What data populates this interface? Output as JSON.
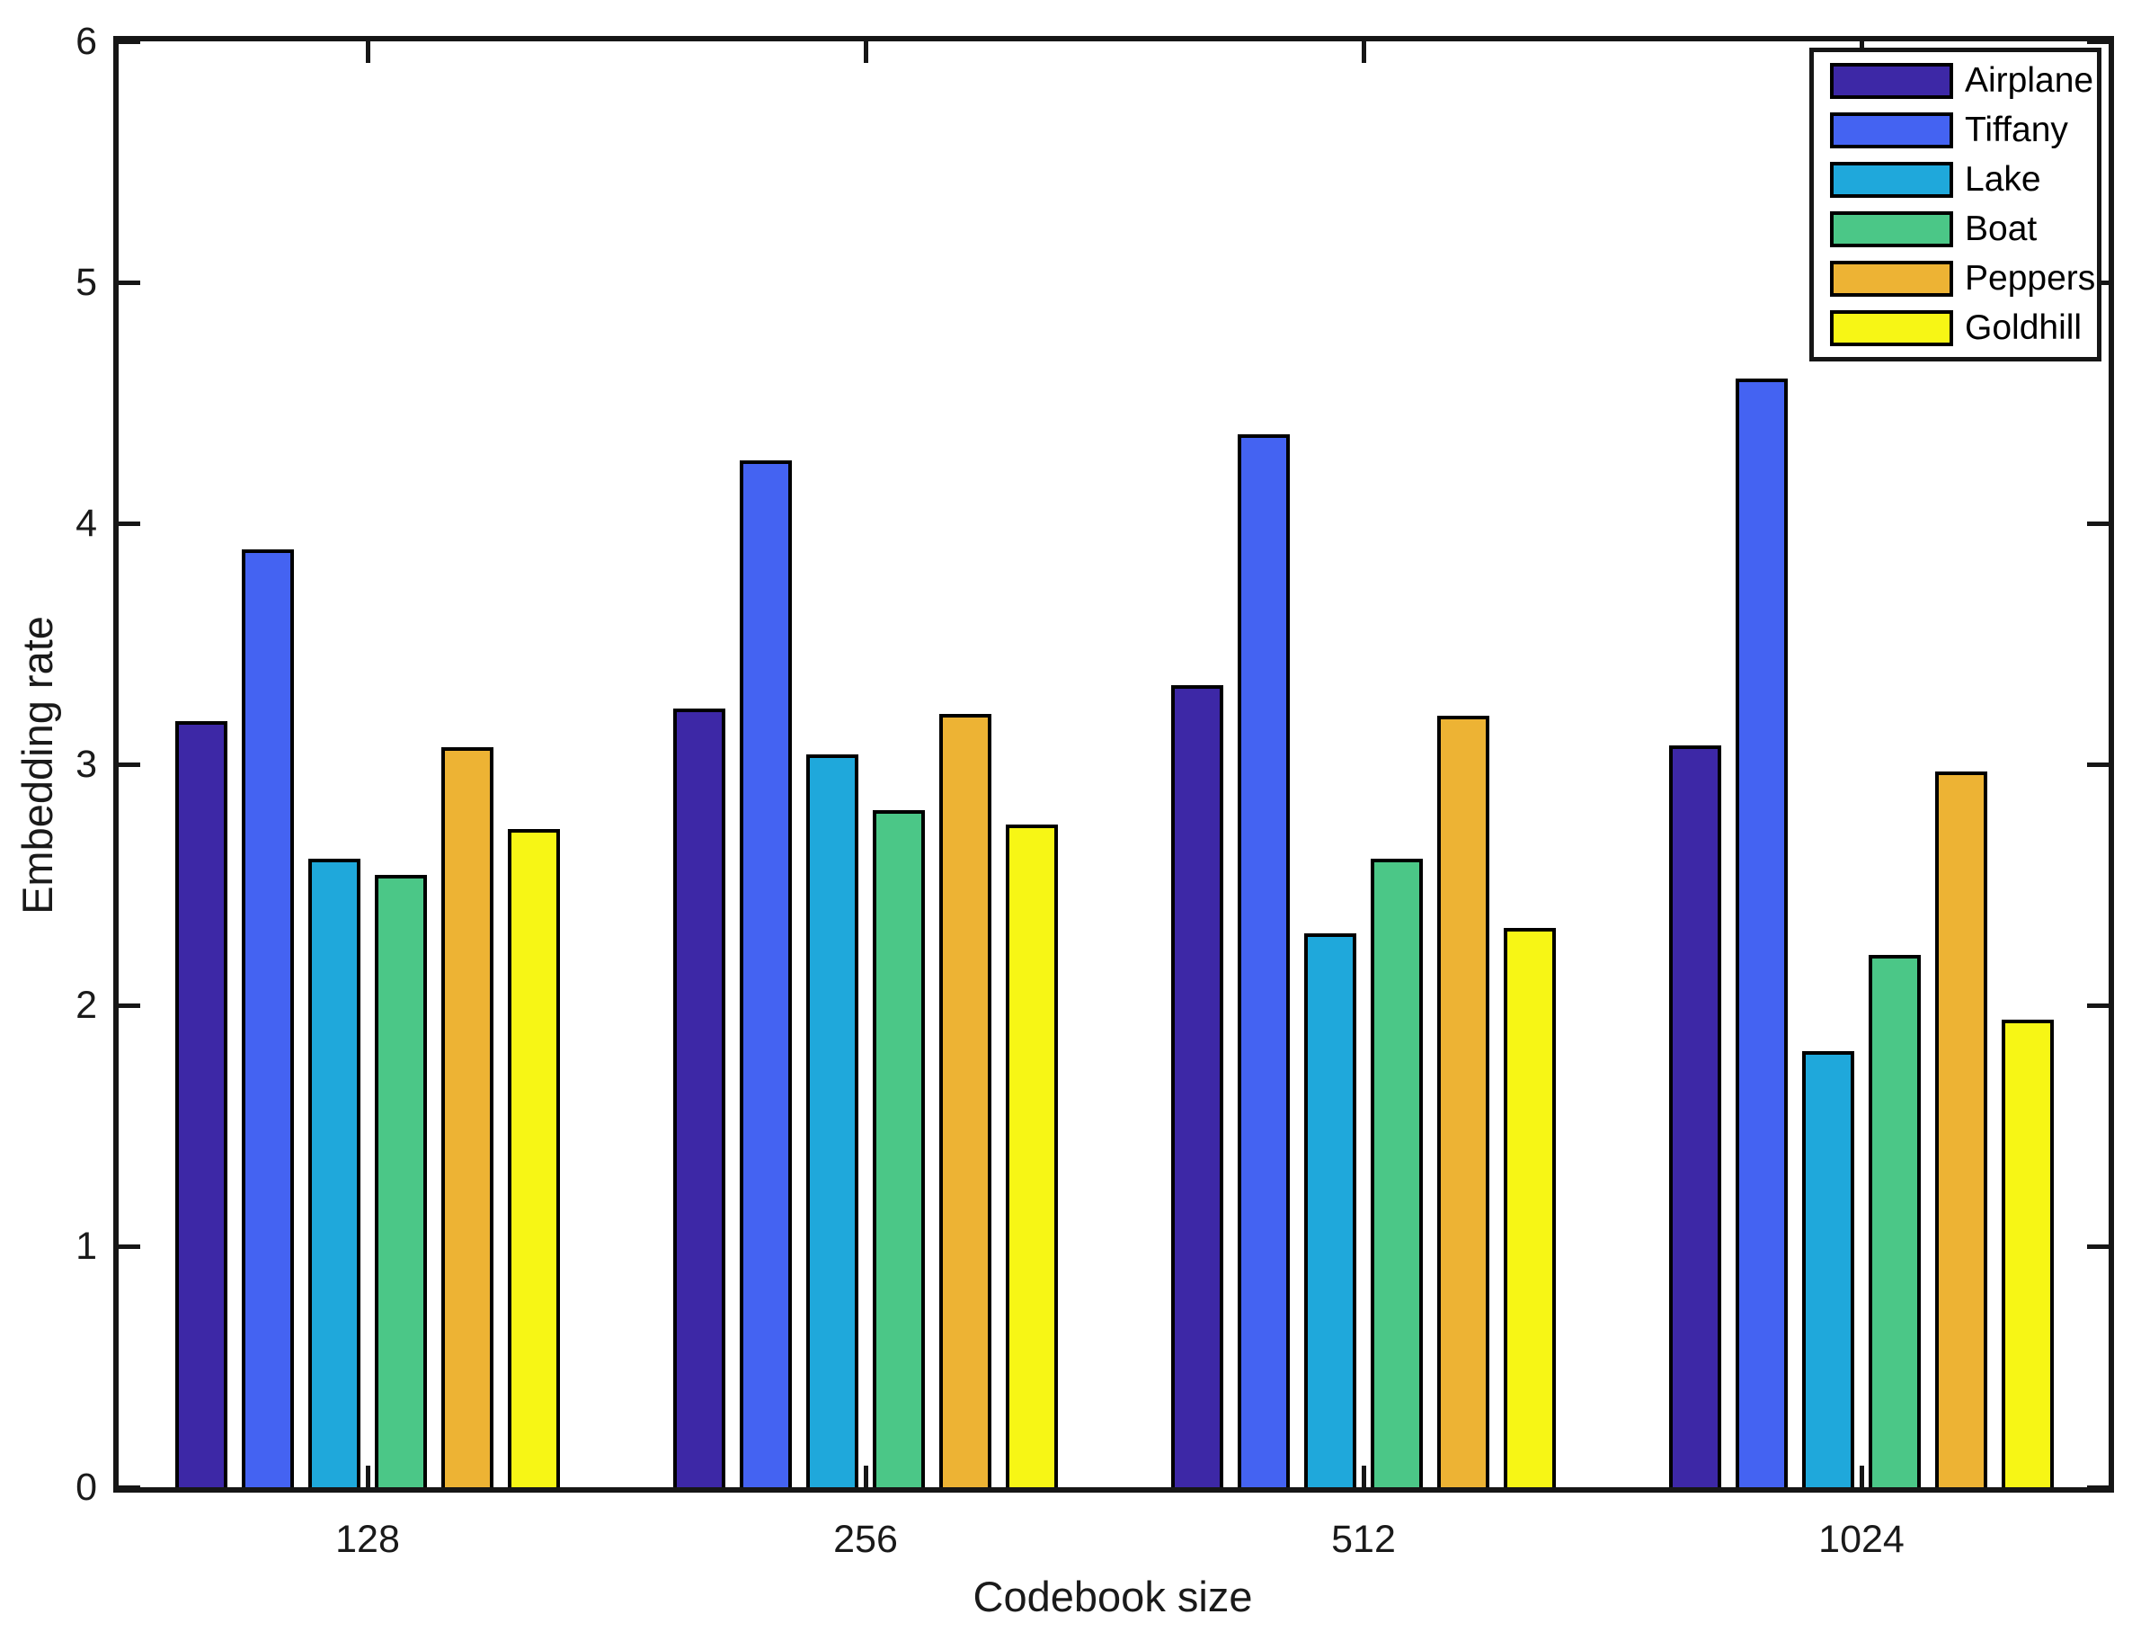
{
  "chart_data": {
    "type": "bar",
    "title": "",
    "xlabel": "Codebook size",
    "ylabel": "Embedding rate",
    "categories": [
      "128",
      "256",
      "512",
      "1024"
    ],
    "series": [
      {
        "name": "Airplane",
        "color": "#3D28A6",
        "values": [
          3.18,
          3.23,
          3.33,
          3.08
        ]
      },
      {
        "name": "Tiffany",
        "color": "#4463F2",
        "values": [
          3.89,
          4.26,
          4.37,
          4.6
        ]
      },
      {
        "name": "Lake",
        "color": "#1FA8DB",
        "values": [
          2.61,
          3.04,
          2.3,
          1.81
        ]
      },
      {
        "name": "Boat",
        "color": "#4BC787",
        "values": [
          2.54,
          2.81,
          2.61,
          2.21
        ]
      },
      {
        "name": "Peppers",
        "color": "#EDB334",
        "values": [
          3.07,
          3.21,
          3.2,
          2.97
        ]
      },
      {
        "name": "Goldhill",
        "color": "#F7F615",
        "values": [
          2.73,
          2.75,
          2.32,
          1.94
        ]
      }
    ],
    "ylim": [
      0,
      6
    ],
    "yticks": [
      0,
      1,
      2,
      3,
      4,
      5,
      6
    ],
    "grid": false,
    "legend_position": "top-right",
    "axis_color": "#161616",
    "bar_outline_color": "#000000"
  }
}
